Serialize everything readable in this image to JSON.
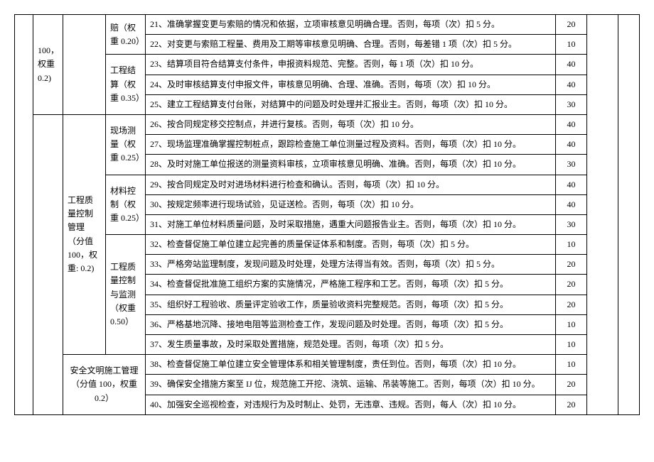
{
  "col_b_text": "100，权重 0.2)",
  "sub1": {
    "label": "赔（权重 0.20）"
  },
  "sub2": {
    "label": "工程结算（权重 0.35）"
  },
  "col_c_text": "工程质量控制管理（分值 100，权重: 0.2)",
  "sub3": {
    "label": "现场测量（权重 0.25）"
  },
  "sub4": {
    "label": "材料控制（权重 0.25）"
  },
  "sub5": {
    "label": "工程质量控制与监测（权重 0.50）"
  },
  "sub6": {
    "label": "安全文明施工管理（分值 100，权重 0.2）"
  },
  "rows": [
    {
      "desc": "21、准确掌握变更与索赔的情况和依据，立项审核意见明确合理。否则，每项（次）扣 5 分。",
      "score": "20"
    },
    {
      "desc": "22、对变更与索赔工程量、费用及工期等审核意见明确、合理。否则，每差错 1 项（次）扣 5 分。",
      "score": "10"
    },
    {
      "desc": "23、结算项目符合结算支付条件，申报资料规范、完整。否则，每 1 项（次）扣 10 分。",
      "score": "40"
    },
    {
      "desc": "24、及时审核结算支付申报文件，审核意见明确、合理、准确。否则，每项（次）扣 10 分。",
      "score": "40"
    },
    {
      "desc": "25、建立工程结算支付台账，对结算中的问题及时处理并汇报业主。否则，每项（次）扣 10 分。",
      "score": "30"
    },
    {
      "desc": "26、按合同规定移交控制点，并进行复核。否则，每项（次）扣 10 分。",
      "score": "40"
    },
    {
      "desc": "27、现场监理准确掌握控制桩点，跟踪检查施工单位测量过程及资料。否则，每项（次）扣 10 分。",
      "score": "40"
    },
    {
      "desc": "28、及时对施工单位报送的测量资料审核，立项审核意见明确、准确。否则，每项（次）扣 10 分。",
      "score": "30"
    },
    {
      "desc": "29、按合同规定及时对进场材料进行检查和确认。否则，每项（次）扣 10 分。",
      "score": "40"
    },
    {
      "desc": "30、按规定频率进行现场试验，见证送检。否则，每项（次）扣 10 分。",
      "score": "40"
    },
    {
      "desc": "31、对施工单位材料质量问题，及时采取措施，遇重大问题报告业主。否则，每项（次）扣 10 分。",
      "score": "30"
    },
    {
      "desc": "32、检查督促施工单位建立起完善的质量保证体系和制度。否则，每项（次）扣 5 分。",
      "score": "10"
    },
    {
      "desc": "33、严格旁站监理制度，发现问题及时处理，处理方法得当有效。否则，每项（次）扣 5 分。",
      "score": "20"
    },
    {
      "desc": "34、检查督促批准施工组织方案的实施情况，严格施工程序和工艺。否则，每项（次）扣 5 分。",
      "score": "20"
    },
    {
      "desc": "35、组织好工程验收、质量评定验收工作，质量验收资料完整规范。否则，每项（次）扣 5 分。",
      "score": "20"
    },
    {
      "desc": "36、严格基地沉降、接地电阻等监测检查工作，发现问题及时处理。否则，每项（次）扣 5 分。",
      "score": "10"
    },
    {
      "desc": "37、发生质量事故，及时采取处置措施，规范处理。否则，每项（次）扣 5 分。",
      "score": "10"
    },
    {
      "desc": "38、检查督促施工单位建立安全管理体系和相关管理制度，责任到位。否则，每项（次）扣 10 分。",
      "score": "10"
    },
    {
      "desc": "39、确保安全措施方案至 IJ 位，规范施工开挖、浇筑、运输、吊装等施工。否则，每项（次）扣 10 分。",
      "score": "20"
    },
    {
      "desc": "40、加强安全巡视检查，对违规行为及时制止、处罚，无违章、违规。否则，每人（次）扣 10 分。",
      "score": "20"
    }
  ]
}
